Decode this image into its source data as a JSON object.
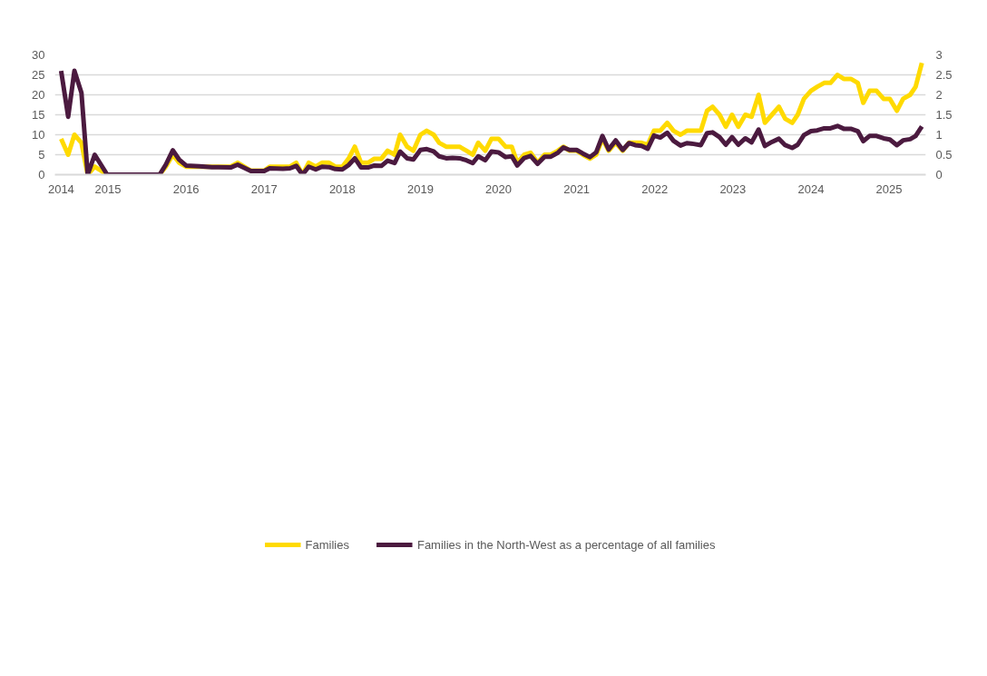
{
  "chart_data": {
    "type": "line",
    "x": [
      2014.4,
      2014.49,
      2014.57,
      2014.66,
      2014.74,
      2014.83,
      2014.99,
      2015.66,
      2015.74,
      2015.83,
      2015.91,
      2016.0,
      2016.17,
      2016.33,
      2016.41,
      2016.57,
      2016.66,
      2016.83,
      2016.91,
      2017.0,
      2017.07,
      2017.24,
      2017.33,
      2017.41,
      2017.49,
      2017.57,
      2017.66,
      2017.74,
      2017.83,
      2017.91,
      2018.0,
      2018.08,
      2018.16,
      2018.24,
      2018.33,
      2018.41,
      2018.5,
      2018.58,
      2018.67,
      2018.74,
      2018.83,
      2018.91,
      2019.0,
      2019.08,
      2019.17,
      2019.24,
      2019.33,
      2019.41,
      2019.5,
      2019.59,
      2019.67,
      2019.74,
      2019.83,
      2019.91,
      2020.0,
      2020.09,
      2020.17,
      2020.24,
      2020.33,
      2020.41,
      2020.5,
      2020.59,
      2020.67,
      2020.76,
      2020.83,
      2020.91,
      2021.0,
      2021.08,
      2021.17,
      2021.25,
      2021.33,
      2021.41,
      2021.5,
      2021.59,
      2021.67,
      2021.75,
      2021.83,
      2021.91,
      2021.99,
      2022.07,
      2022.16,
      2022.24,
      2022.33,
      2022.41,
      2022.5,
      2022.59,
      2022.67,
      2022.74,
      2022.83,
      2022.91,
      2022.99,
      2023.07,
      2023.16,
      2023.24,
      2023.33,
      2023.41,
      2023.5,
      2023.59,
      2023.67,
      2023.76,
      2023.83,
      2023.91,
      2024.0,
      2024.08,
      2024.17,
      2024.25,
      2024.34,
      2024.42,
      2024.51,
      2024.6,
      2024.67,
      2024.75,
      2024.84,
      2024.93,
      2025.01,
      2025.1,
      2025.18,
      2025.27,
      2025.34,
      2025.42
    ],
    "series": [
      {
        "name": "Families",
        "color": "#ffda00",
        "values": [
          9,
          5,
          10,
          8,
          0,
          2,
          0,
          0,
          2,
          5,
          3,
          2,
          2,
          2,
          2,
          2,
          3,
          1,
          1,
          1,
          2,
          2,
          2,
          3,
          0,
          3,
          2,
          3,
          3,
          2,
          2,
          4,
          7,
          3,
          3,
          4,
          4,
          6,
          5,
          10,
          7,
          6,
          10,
          11,
          10,
          8,
          7,
          7,
          7,
          6,
          5,
          8,
          6,
          9,
          9,
          7,
          7,
          3,
          5,
          5.5,
          3,
          5,
          5,
          6,
          7,
          6,
          6,
          5,
          4,
          5,
          9,
          6,
          8,
          6,
          8,
          8,
          8,
          7.5,
          11,
          11,
          13,
          11,
          10,
          11,
          11,
          11,
          16,
          17,
          15,
          12,
          15,
          12,
          15,
          14.5,
          20,
          13,
          15,
          17,
          14,
          13,
          15,
          19,
          21,
          22,
          23,
          23,
          25,
          24,
          24,
          23,
          18,
          21,
          21,
          19,
          19,
          16,
          19,
          20,
          22,
          28
        ]
      },
      {
        "name": "Families in the North-West as a percentage of all families",
        "color": "#4b1a3f",
        "axis": "y2",
        "values": [
          2.6,
          1.45,
          2.6,
          2.05,
          0,
          0.5,
          0,
          0,
          0.25,
          0.61,
          0.38,
          0.23,
          0.21,
          0.19,
          0.19,
          0.18,
          0.25,
          0.09,
          0.09,
          0.09,
          0.16,
          0.15,
          0.16,
          0.22,
          0,
          0.2,
          0.13,
          0.2,
          0.19,
          0.14,
          0.13,
          0.24,
          0.41,
          0.18,
          0.18,
          0.23,
          0.22,
          0.35,
          0.29,
          0.58,
          0.41,
          0.38,
          0.62,
          0.64,
          0.58,
          0.46,
          0.41,
          0.42,
          0.41,
          0.36,
          0.29,
          0.46,
          0.36,
          0.58,
          0.56,
          0.44,
          0.46,
          0.23,
          0.42,
          0.47,
          0.27,
          0.45,
          0.45,
          0.55,
          0.68,
          0.62,
          0.62,
          0.53,
          0.44,
          0.56,
          0.97,
          0.63,
          0.86,
          0.62,
          0.79,
          0.74,
          0.72,
          0.65,
          0.98,
          0.93,
          1.05,
          0.85,
          0.73,
          0.79,
          0.77,
          0.74,
          1.04,
          1.06,
          0.94,
          0.75,
          0.94,
          0.75,
          0.91,
          0.81,
          1.13,
          0.72,
          0.82,
          0.9,
          0.74,
          0.67,
          0.75,
          0.99,
          1.09,
          1.11,
          1.16,
          1.16,
          1.22,
          1.15,
          1.15,
          1.09,
          0.84,
          0.97,
          0.97,
          0.91,
          0.88,
          0.74,
          0.86,
          0.89,
          0.97,
          1.21
        ]
      }
    ],
    "xlim": [
      2014.32,
      2025.47
    ],
    "xticks": [
      {
        "value": 2014.4,
        "label": "2014"
      },
      2015,
      2016,
      2017,
      2018,
      2019,
      2020,
      2021,
      2022,
      2023,
      2024,
      2025
    ],
    "ylim": [
      0,
      30
    ],
    "yticks": [
      0,
      5,
      10,
      15,
      20,
      25,
      30
    ],
    "y2lim": [
      0,
      3
    ],
    "y2ticks": [
      0,
      0.5,
      1,
      1.5,
      2,
      2.5,
      3
    ],
    "grid": "y",
    "legend": "bottom",
    "marker": "none",
    "line_style": "solid"
  }
}
